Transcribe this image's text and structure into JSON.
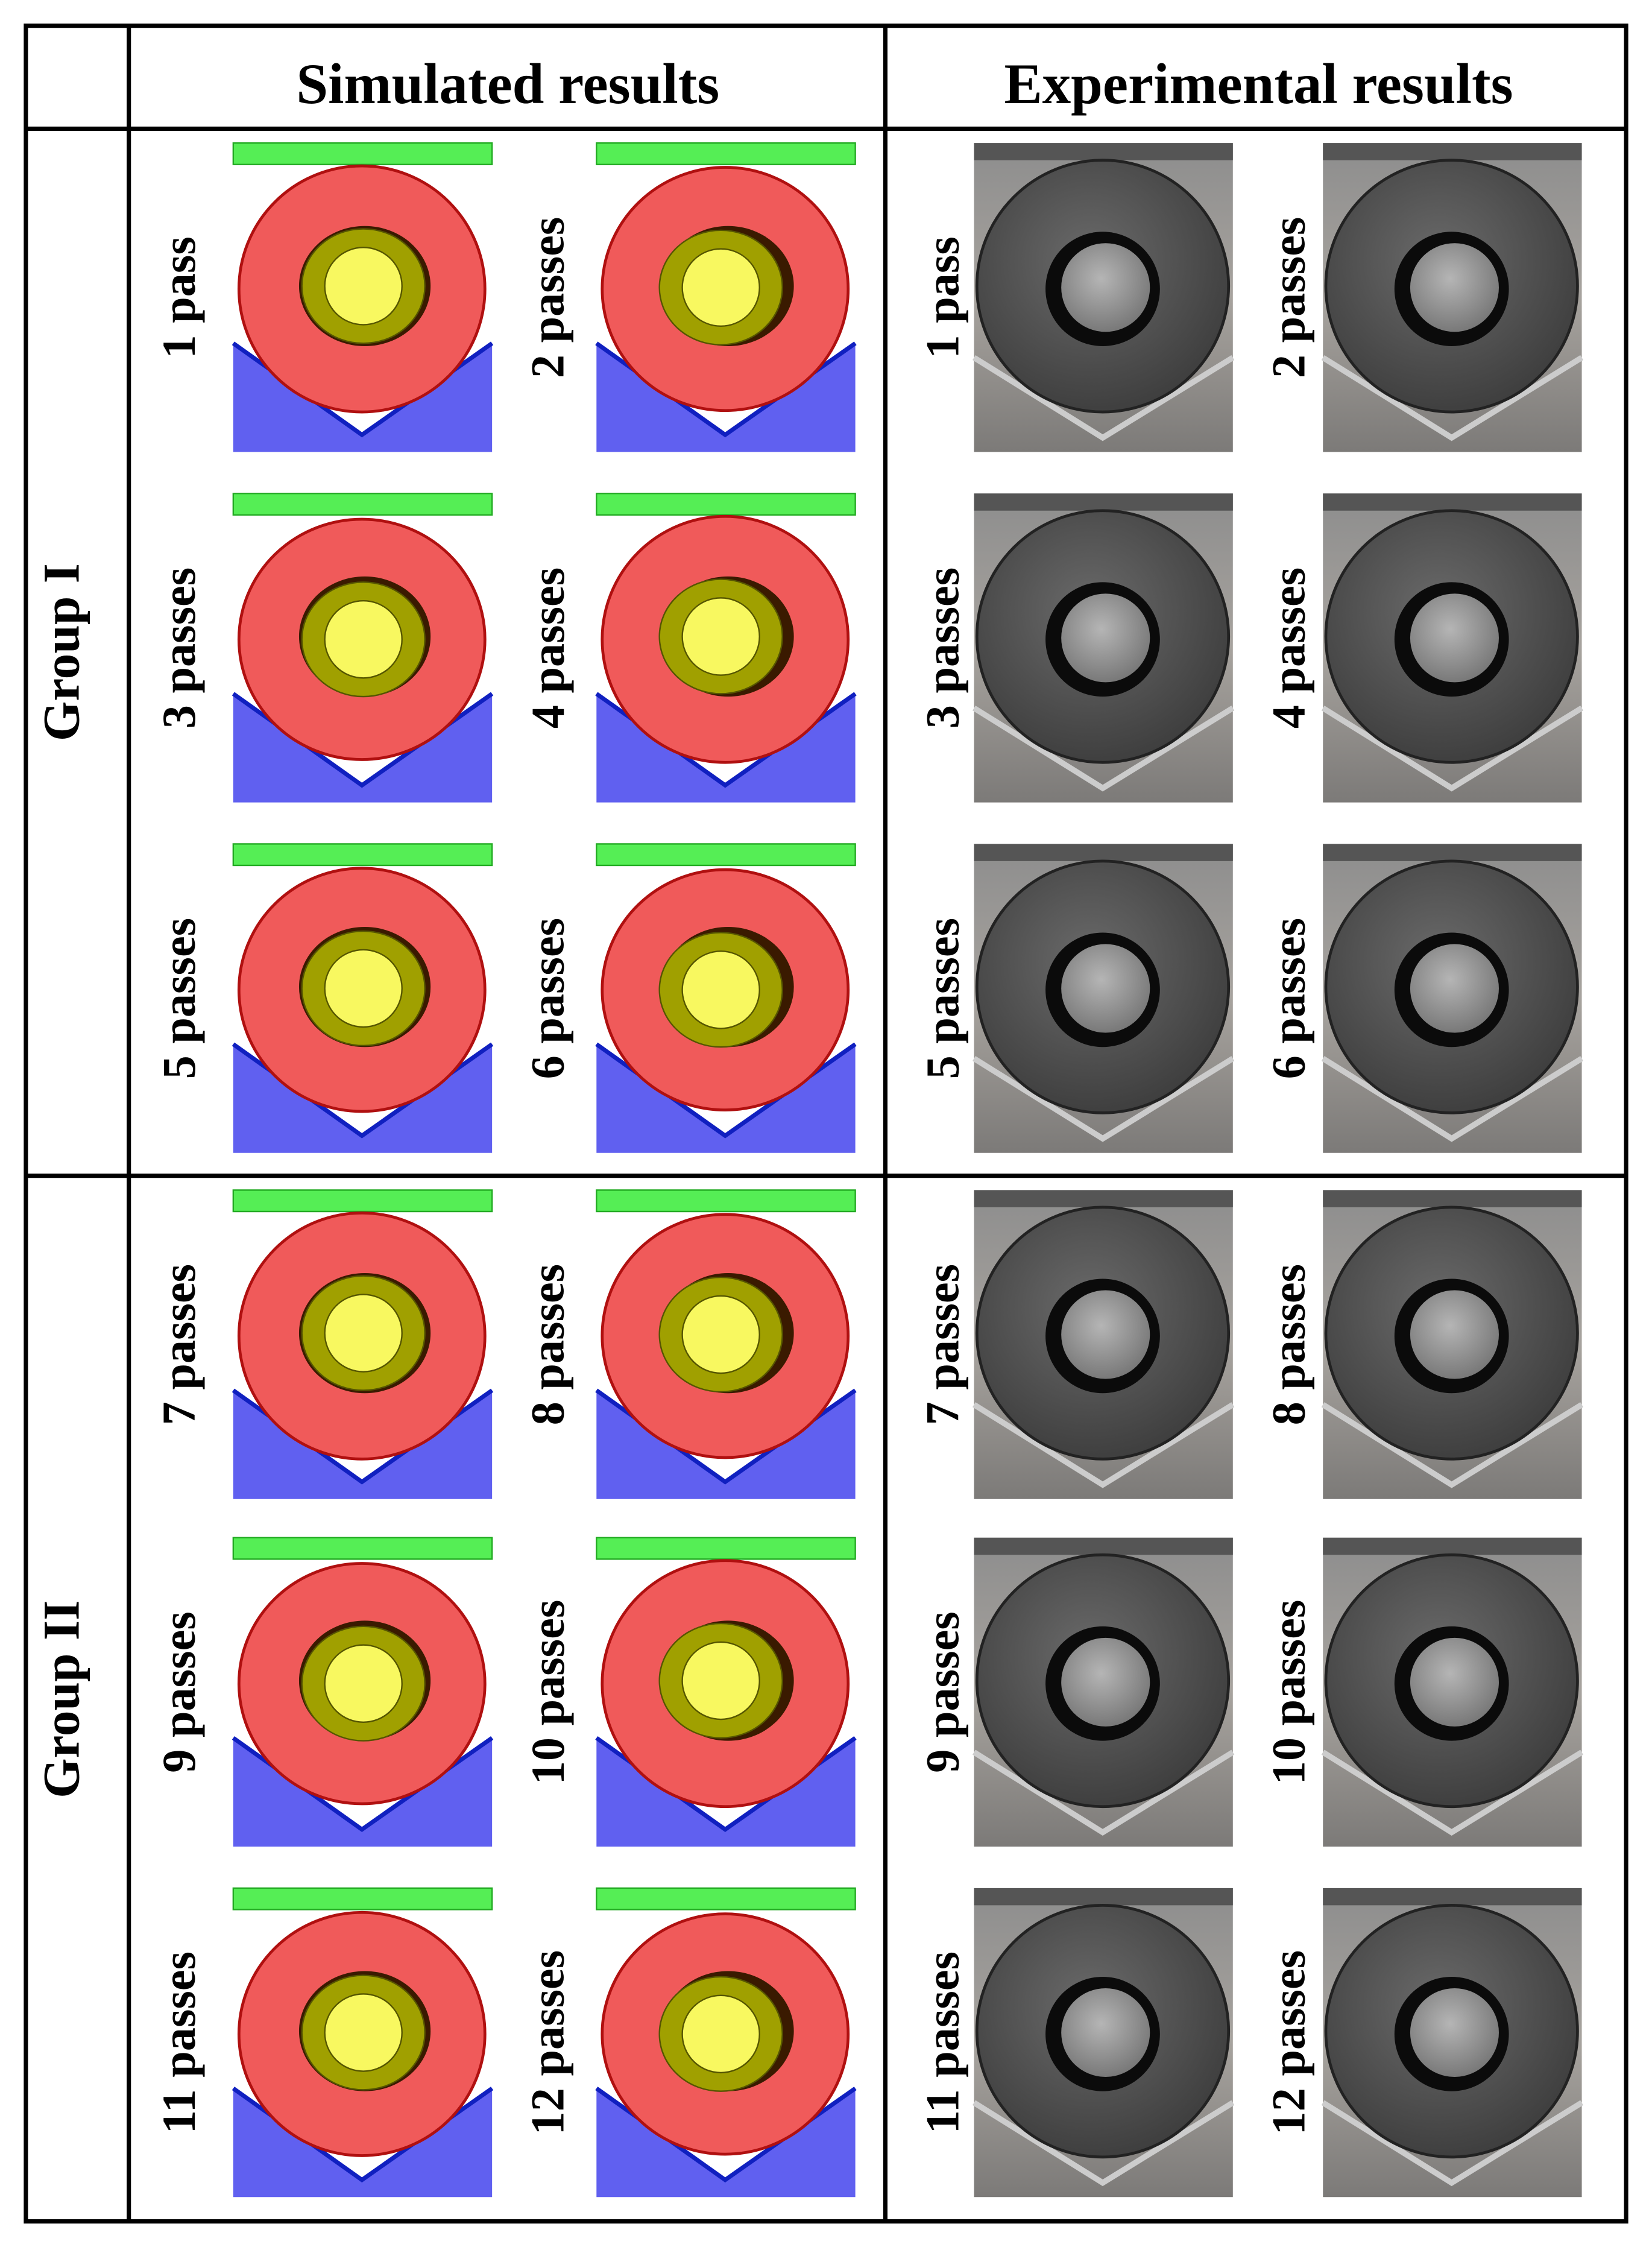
{
  "header": {
    "simulated": "Simulated results",
    "experimental": "Experimental results"
  },
  "groups": [
    {
      "label": "Group I",
      "simulated": [
        "1 pass",
        "2 passes",
        "3 passes",
        "4 passes",
        "5 passes",
        "6 passes"
      ],
      "experimental": [
        "1 pass",
        "2 passes",
        "3 passes",
        "4 passes",
        "5 passes",
        "6 passes"
      ]
    },
    {
      "label": "Group II",
      "simulated": [
        "7 passes",
        "8 passes",
        "9 passes",
        "10 passes",
        "11 passes",
        "12 passes"
      ],
      "experimental": [
        "7 passes",
        "8 passes",
        "9 passes",
        "10 passes",
        "11 passes",
        "12 passes"
      ]
    }
  ]
}
